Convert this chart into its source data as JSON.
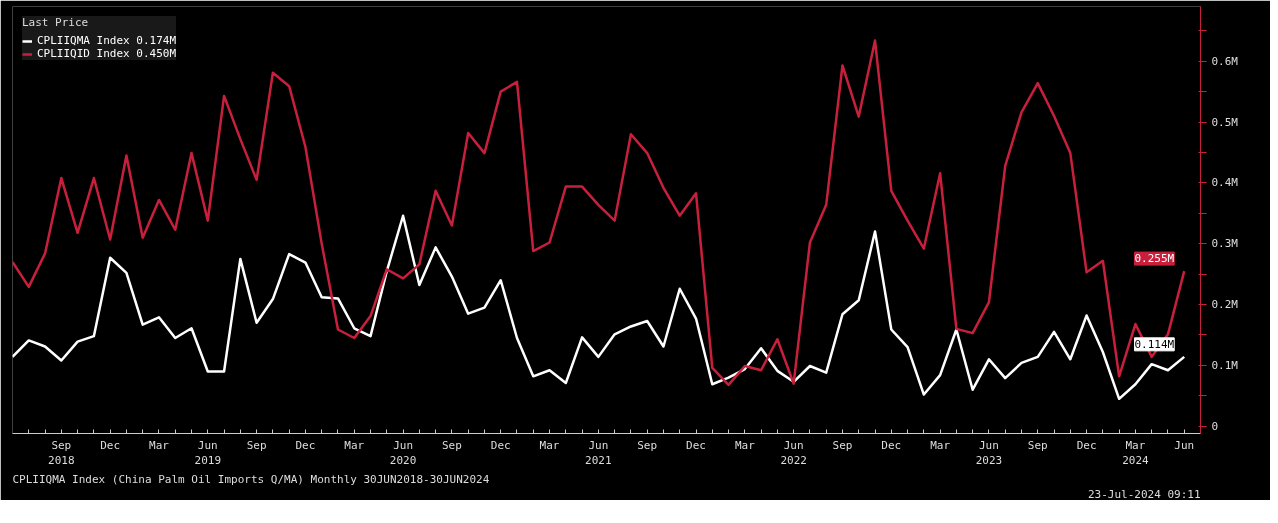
{
  "chart_data": {
    "type": "line",
    "x": [
      "2018-06",
      "2018-07",
      "2018-08",
      "2018-09",
      "2018-10",
      "2018-11",
      "2018-12",
      "2019-01",
      "2019-02",
      "2019-03",
      "2019-04",
      "2019-05",
      "2019-06",
      "2019-07",
      "2019-08",
      "2019-09",
      "2019-10",
      "2019-11",
      "2019-12",
      "2020-01",
      "2020-02",
      "2020-03",
      "2020-04",
      "2020-05",
      "2020-06",
      "2020-07",
      "2020-08",
      "2020-09",
      "2020-10",
      "2020-11",
      "2020-12",
      "2021-01",
      "2021-02",
      "2021-03",
      "2021-04",
      "2021-05",
      "2021-06",
      "2021-07",
      "2021-08",
      "2021-09",
      "2021-10",
      "2021-11",
      "2021-12",
      "2022-01",
      "2022-02",
      "2022-03",
      "2022-04",
      "2022-05",
      "2022-06",
      "2022-07",
      "2022-08",
      "2022-09",
      "2022-10",
      "2022-11",
      "2022-12",
      "2023-01",
      "2023-02",
      "2023-03",
      "2023-04",
      "2023-05",
      "2023-06",
      "2023-07",
      "2023-08",
      "2023-09",
      "2023-10",
      "2023-11",
      "2023-12",
      "2024-01",
      "2024-02",
      "2024-03",
      "2024-04",
      "2024-05",
      "2024-06"
    ],
    "legend_title": "Last Price",
    "series": [
      {
        "name": "CPLIIQMA Index 0.174M",
        "color": "#ffffff",
        "values": [
          0.114,
          0.141,
          0.131,
          0.108,
          0.139,
          0.148,
          0.277,
          0.252,
          0.167,
          0.179,
          0.145,
          0.161,
          0.09,
          0.09,
          0.275,
          0.17,
          0.209,
          0.283,
          0.269,
          0.212,
          0.21,
          0.161,
          0.148,
          0.255,
          0.346,
          0.232,
          0.294,
          0.246,
          0.185,
          0.195,
          0.24,
          0.145,
          0.082,
          0.092,
          0.071,
          0.146,
          0.114,
          0.151,
          0.164,
          0.173,
          0.131,
          0.226,
          0.177,
          0.069,
          0.08,
          0.094,
          0.128,
          0.091,
          0.073,
          0.099,
          0.088,
          0.184,
          0.207,
          0.32,
          0.159,
          0.13,
          0.052,
          0.084,
          0.159,
          0.06,
          0.11,
          0.079,
          0.104,
          0.114,
          0.155,
          0.11,
          0.182,
          0.122,
          0.045,
          0.069,
          0.102,
          0.092,
          0.114
        ],
        "value_labels": [
          null,
          null,
          null,
          null,
          null,
          null,
          null,
          null,
          null,
          null,
          null,
          null,
          null,
          null,
          null,
          null,
          null,
          null,
          null,
          null,
          null,
          null,
          null,
          null,
          null,
          null,
          null,
          null,
          null,
          null,
          null,
          null,
          null,
          null,
          null,
          null,
          null,
          null,
          null,
          null,
          null,
          null,
          null,
          null,
          null,
          null,
          null,
          null,
          null,
          null,
          null,
          null,
          null,
          null,
          null,
          null,
          null,
          null,
          null,
          null,
          null,
          null,
          null,
          null,
          null,
          null,
          null,
          null,
          null,
          null,
          null,
          null,
          "0.114M"
        ]
      },
      {
        "name": "CPLIIQID Index 0.450M",
        "color": "#c8203c",
        "values": [
          0.27,
          0.229,
          0.284,
          0.408,
          0.318,
          0.408,
          0.307,
          0.445,
          0.31,
          0.372,
          0.323,
          0.449,
          0.338,
          0.543,
          0.472,
          0.405,
          0.581,
          0.559,
          0.459,
          0.3,
          0.159,
          0.145,
          0.181,
          0.258,
          0.243,
          0.266,
          0.387,
          0.33,
          0.482,
          0.449,
          0.55,
          0.566,
          0.288,
          0.302,
          0.394,
          0.394,
          0.364,
          0.338,
          0.48,
          0.449,
          0.392,
          0.346,
          0.383,
          0.096,
          0.068,
          0.099,
          0.092,
          0.143,
          0.07,
          0.302,
          0.364,
          0.593,
          0.509,
          0.634,
          0.387,
          0.338,
          0.292,
          0.416,
          0.16,
          0.153,
          0.204,
          0.428,
          0.516,
          0.564,
          0.51,
          0.449,
          0.253,
          0.272,
          0.082,
          0.168,
          0.114,
          0.151,
          0.255
        ],
        "value_labels": [
          null,
          null,
          null,
          null,
          null,
          null,
          null,
          null,
          null,
          null,
          null,
          null,
          null,
          null,
          null,
          null,
          null,
          null,
          null,
          null,
          null,
          null,
          null,
          null,
          null,
          null,
          null,
          null,
          null,
          null,
          null,
          null,
          null,
          null,
          null,
          null,
          null,
          null,
          null,
          null,
          null,
          null,
          null,
          null,
          null,
          null,
          null,
          null,
          null,
          null,
          null,
          null,
          null,
          null,
          null,
          null,
          null,
          null,
          null,
          null,
          null,
          null,
          null,
          null,
          null,
          null,
          null,
          null,
          null,
          null,
          null,
          null,
          "0.255M"
        ]
      }
    ],
    "xlim": [
      "2018-06",
      "2024-07"
    ],
    "xticks": [
      {
        "value": "2018-07",
        "label": null
      },
      {
        "value": "2018-08",
        "label": null
      },
      {
        "value": "2018-09",
        "label": "Sep\n2018"
      },
      {
        "value": "2018-10",
        "label": null
      },
      {
        "value": "2018-11",
        "label": null
      },
      {
        "value": "2018-12",
        "label": "Dec"
      },
      {
        "value": "2019-01",
        "label": null
      },
      {
        "value": "2019-02",
        "label": null
      },
      {
        "value": "2019-03",
        "label": "Mar"
      },
      {
        "value": "2019-04",
        "label": null
      },
      {
        "value": "2019-05",
        "label": null
      },
      {
        "value": "2019-06",
        "label": "Jun\n2019"
      },
      {
        "value": "2019-07",
        "label": null
      },
      {
        "value": "2019-08",
        "label": null
      },
      {
        "value": "2019-09",
        "label": "Sep"
      },
      {
        "value": "2019-10",
        "label": null
      },
      {
        "value": "2019-11",
        "label": null
      },
      {
        "value": "2019-12",
        "label": "Dec"
      },
      {
        "value": "2020-01",
        "label": null
      },
      {
        "value": "2020-02",
        "label": null
      },
      {
        "value": "2020-03",
        "label": "Mar"
      },
      {
        "value": "2020-04",
        "label": null
      },
      {
        "value": "2020-05",
        "label": null
      },
      {
        "value": "2020-06",
        "label": "Jun\n2020"
      },
      {
        "value": "2020-07",
        "label": null
      },
      {
        "value": "2020-08",
        "label": null
      },
      {
        "value": "2020-09",
        "label": "Sep"
      },
      {
        "value": "2020-10",
        "label": null
      },
      {
        "value": "2020-11",
        "label": null
      },
      {
        "value": "2020-12",
        "label": "Dec"
      },
      {
        "value": "2021-01",
        "label": null
      },
      {
        "value": "2021-02",
        "label": null
      },
      {
        "value": "2021-03",
        "label": "Mar"
      },
      {
        "value": "2021-04",
        "label": null
      },
      {
        "value": "2021-05",
        "label": null
      },
      {
        "value": "2021-06",
        "label": "Jun\n2021"
      },
      {
        "value": "2021-07",
        "label": null
      },
      {
        "value": "2021-08",
        "label": null
      },
      {
        "value": "2021-09",
        "label": "Sep"
      },
      {
        "value": "2021-10",
        "label": null
      },
      {
        "value": "2021-11",
        "label": null
      },
      {
        "value": "2021-12",
        "label": "Dec"
      },
      {
        "value": "2022-01",
        "label": null
      },
      {
        "value": "2022-02",
        "label": null
      },
      {
        "value": "2022-03",
        "label": "Mar"
      },
      {
        "value": "2022-04",
        "label": null
      },
      {
        "value": "2022-05",
        "label": null
      },
      {
        "value": "2022-06",
        "label": "Jun\n2022"
      },
      {
        "value": "2022-07",
        "label": null
      },
      {
        "value": "2022-08",
        "label": null
      },
      {
        "value": "2022-09",
        "label": "Sep"
      },
      {
        "value": "2022-10",
        "label": null
      },
      {
        "value": "2022-11",
        "label": null
      },
      {
        "value": "2022-12",
        "label": "Dec"
      },
      {
        "value": "2023-01",
        "label": null
      },
      {
        "value": "2023-02",
        "label": null
      },
      {
        "value": "2023-03",
        "label": "Mar"
      },
      {
        "value": "2023-04",
        "label": null
      },
      {
        "value": "2023-05",
        "label": null
      },
      {
        "value": "2023-06",
        "label": "Jun\n2023"
      },
      {
        "value": "2023-07",
        "label": null
      },
      {
        "value": "2023-08",
        "label": null
      },
      {
        "value": "2023-09",
        "label": "Sep"
      },
      {
        "value": "2023-10",
        "label": null
      },
      {
        "value": "2023-11",
        "label": null
      },
      {
        "value": "2023-12",
        "label": "Dec"
      },
      {
        "value": "2024-01",
        "label": null
      },
      {
        "value": "2024-02",
        "label": null
      },
      {
        "value": "2024-03",
        "label": "Mar\n2024"
      },
      {
        "value": "2024-04",
        "label": null
      },
      {
        "value": "2024-05",
        "label": null
      },
      {
        "value": "2024-06",
        "label": "Jun"
      }
    ],
    "ylim": [
      -0.012,
      0.69
    ],
    "yticks": [
      {
        "value": 0,
        "label": "0"
      },
      {
        "value": 0.05,
        "label": null
      },
      {
        "value": 0.1,
        "label": "0.1M"
      },
      {
        "value": 0.15,
        "label": null
      },
      {
        "value": 0.2,
        "label": "0.2M"
      },
      {
        "value": 0.25,
        "label": null
      },
      {
        "value": 0.3,
        "label": "0.3M"
      },
      {
        "value": 0.35,
        "label": null
      },
      {
        "value": 0.4,
        "label": "0.4M"
      },
      {
        "value": 0.45,
        "label": null
      },
      {
        "value": 0.5,
        "label": "0.5M"
      },
      {
        "value": 0.55,
        "label": null
      },
      {
        "value": 0.6,
        "label": "0.6M"
      },
      {
        "value": 0.65,
        "label": null
      }
    ],
    "grid": false,
    "legend": "top left",
    "annotations": [
      "CPLIIQMA Index (China Palm Oil Imports Q/MA)  Monthly 30JUN2018-30JUN2024",
      "23-Jul-2024 09:11"
    ]
  }
}
